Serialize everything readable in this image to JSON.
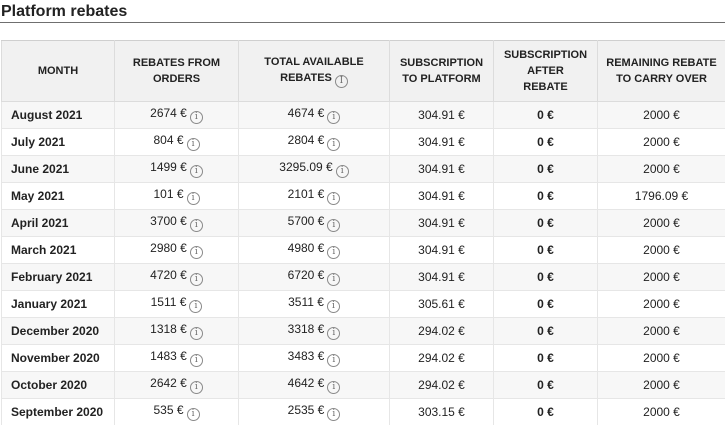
{
  "section": {
    "title": "Platform rebates"
  },
  "icons": {
    "info": "i"
  },
  "table": {
    "headers": {
      "month": "MONTH",
      "rebates_from_orders": [
        "REBATES FROM",
        "ORDERS"
      ],
      "total_available_rebates": [
        "TOTAL AVAILABLE",
        "REBATES"
      ],
      "subscription_to_platform": [
        "SUBSCRIPTION",
        "TO PLATFORM"
      ],
      "subscription_after_rebate": [
        "SUBSCRIPTION",
        "AFTER",
        "REBATE"
      ],
      "remaining_rebate": [
        "REMAINING REBATE",
        "TO CARRY OVER"
      ]
    },
    "rows": [
      {
        "month": "August 2021",
        "rebates_from_orders": "2674 €",
        "total_available": "4674 €",
        "subscription": "304.91 €",
        "after_rebate": "0 €",
        "remaining": "2000 €"
      },
      {
        "month": "July 2021",
        "rebates_from_orders": "804 €",
        "total_available": "2804 €",
        "subscription": "304.91 €",
        "after_rebate": "0 €",
        "remaining": "2000 €"
      },
      {
        "month": "June 2021",
        "rebates_from_orders": "1499 €",
        "total_available": "3295.09 €",
        "subscription": "304.91 €",
        "after_rebate": "0 €",
        "remaining": "2000 €"
      },
      {
        "month": "May 2021",
        "rebates_from_orders": "101 €",
        "total_available": "2101 €",
        "subscription": "304.91 €",
        "after_rebate": "0 €",
        "remaining": "1796.09 €"
      },
      {
        "month": "April 2021",
        "rebates_from_orders": "3700 €",
        "total_available": "5700 €",
        "subscription": "304.91 €",
        "after_rebate": "0 €",
        "remaining": "2000 €"
      },
      {
        "month": "March 2021",
        "rebates_from_orders": "2980 €",
        "total_available": "4980 €",
        "subscription": "304.91 €",
        "after_rebate": "0 €",
        "remaining": "2000 €"
      },
      {
        "month": "February 2021",
        "rebates_from_orders": "4720 €",
        "total_available": "6720 €",
        "subscription": "304.91 €",
        "after_rebate": "0 €",
        "remaining": "2000 €"
      },
      {
        "month": "January 2021",
        "rebates_from_orders": "1511 €",
        "total_available": "3511 €",
        "subscription": "305.61 €",
        "after_rebate": "0 €",
        "remaining": "2000 €"
      },
      {
        "month": "December 2020",
        "rebates_from_orders": "1318 €",
        "total_available": "3318 €",
        "subscription": "294.02 €",
        "after_rebate": "0 €",
        "remaining": "2000 €"
      },
      {
        "month": "November 2020",
        "rebates_from_orders": "1483 €",
        "total_available": "3483 €",
        "subscription": "294.02 €",
        "after_rebate": "0 €",
        "remaining": "2000 €"
      },
      {
        "month": "October 2020",
        "rebates_from_orders": "2642 €",
        "total_available": "4642 €",
        "subscription": "294.02 €",
        "after_rebate": "0 €",
        "remaining": "2000 €"
      },
      {
        "month": "September 2020",
        "rebates_from_orders": "535 €",
        "total_available": "2535 €",
        "subscription": "303.15 €",
        "after_rebate": "0 €",
        "remaining": "2000 €"
      }
    ]
  }
}
